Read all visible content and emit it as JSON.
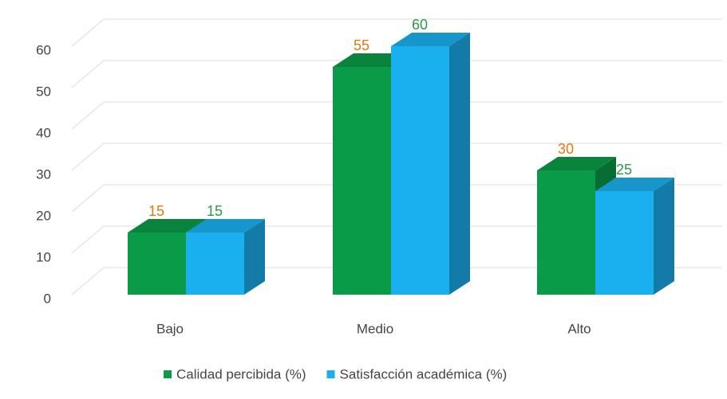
{
  "chart_data": {
    "type": "bar3d",
    "categories": [
      "Bajo",
      "Medio",
      "Alto"
    ],
    "series": [
      {
        "name": "Calidad percibida (%)",
        "color": "#0a9b48",
        "label_color": "#e07a10",
        "values": [
          15,
          55,
          30
        ]
      },
      {
        "name": "Satisfacción académica (%)",
        "color": "#1ab0ef",
        "label_color": "#2a9a4a",
        "values": [
          15,
          60,
          25
        ]
      }
    ],
    "ylim": [
      0,
      70
    ],
    "yticks": [
      0,
      10,
      20,
      30,
      40,
      50,
      60
    ],
    "grid": true,
    "legend": "bottom"
  }
}
